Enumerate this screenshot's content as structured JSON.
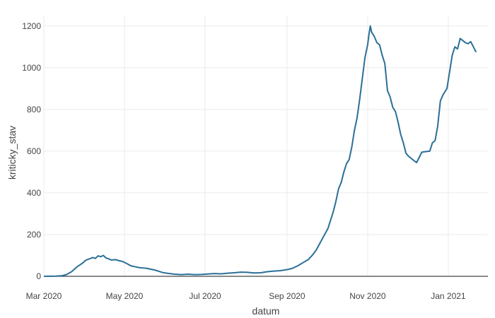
{
  "chart_data": {
    "type": "line",
    "title": "",
    "xlabel": "datum",
    "ylabel": "kriticky_stav",
    "grid": true,
    "legend": "none",
    "xlim": [
      "2020-03-01",
      "2021-01-31"
    ],
    "ylim": [
      0,
      1250
    ],
    "x_ticks": [
      {
        "date": "2020-03-01",
        "label": "Mar 2020"
      },
      {
        "date": "2020-05-01",
        "label": "May 2020"
      },
      {
        "date": "2020-07-01",
        "label": "Jul 2020"
      },
      {
        "date": "2020-09-01",
        "label": "Sep 2020"
      },
      {
        "date": "2020-11-01",
        "label": "Nov 2020"
      },
      {
        "date": "2021-01-01",
        "label": "Jan 2021"
      }
    ],
    "y_ticks": [
      {
        "value": 0,
        "label": "0"
      },
      {
        "value": 200,
        "label": "200"
      },
      {
        "value": 400,
        "label": "400"
      },
      {
        "value": 600,
        "label": "600"
      },
      {
        "value": 800,
        "label": "800"
      },
      {
        "value": 1000,
        "label": "1000"
      },
      {
        "value": 1200,
        "label": "1200"
      }
    ],
    "colors": {
      "line": "#2a6f97",
      "grid": "#ebebeb",
      "zeroline": "#444444",
      "text": "#444444"
    },
    "series": [
      {
        "points": [
          [
            "2020-03-01",
            0
          ],
          [
            "2020-03-10",
            1
          ],
          [
            "2020-03-15",
            3
          ],
          [
            "2020-03-18",
            8
          ],
          [
            "2020-03-22",
            22
          ],
          [
            "2020-03-26",
            45
          ],
          [
            "2020-03-30",
            62
          ],
          [
            "2020-04-02",
            78
          ],
          [
            "2020-04-05",
            85
          ],
          [
            "2020-04-07",
            90
          ],
          [
            "2020-04-09",
            86
          ],
          [
            "2020-04-11",
            98
          ],
          [
            "2020-04-13",
            94
          ],
          [
            "2020-04-15",
            100
          ],
          [
            "2020-04-17",
            88
          ],
          [
            "2020-04-19",
            84
          ],
          [
            "2020-04-21",
            78
          ],
          [
            "2020-04-24",
            80
          ],
          [
            "2020-04-27",
            75
          ],
          [
            "2020-04-30",
            70
          ],
          [
            "2020-05-03",
            60
          ],
          [
            "2020-05-06",
            50
          ],
          [
            "2020-05-09",
            46
          ],
          [
            "2020-05-12",
            42
          ],
          [
            "2020-05-15",
            40
          ],
          [
            "2020-05-18",
            38
          ],
          [
            "2020-05-21",
            34
          ],
          [
            "2020-05-24",
            30
          ],
          [
            "2020-05-27",
            24
          ],
          [
            "2020-05-30",
            18
          ],
          [
            "2020-06-03",
            14
          ],
          [
            "2020-06-08",
            10
          ],
          [
            "2020-06-13",
            8
          ],
          [
            "2020-06-18",
            10
          ],
          [
            "2020-06-23",
            8
          ],
          [
            "2020-06-28",
            9
          ],
          [
            "2020-07-03",
            11
          ],
          [
            "2020-07-08",
            13
          ],
          [
            "2020-07-13",
            12
          ],
          [
            "2020-07-18",
            15
          ],
          [
            "2020-07-23",
            17
          ],
          [
            "2020-07-28",
            20
          ],
          [
            "2020-08-02",
            19
          ],
          [
            "2020-08-07",
            16
          ],
          [
            "2020-08-12",
            17
          ],
          [
            "2020-08-17",
            22
          ],
          [
            "2020-08-22",
            25
          ],
          [
            "2020-08-27",
            27
          ],
          [
            "2020-09-01",
            32
          ],
          [
            "2020-09-05",
            38
          ],
          [
            "2020-09-09",
            50
          ],
          [
            "2020-09-13",
            65
          ],
          [
            "2020-09-17",
            80
          ],
          [
            "2020-09-20",
            100
          ],
          [
            "2020-09-23",
            125
          ],
          [
            "2020-09-26",
            160
          ],
          [
            "2020-09-29",
            195
          ],
          [
            "2020-10-02",
            230
          ],
          [
            "2020-10-04",
            270
          ],
          [
            "2020-10-06",
            310
          ],
          [
            "2020-10-08",
            360
          ],
          [
            "2020-10-10",
            420
          ],
          [
            "2020-10-12",
            450
          ],
          [
            "2020-10-14",
            500
          ],
          [
            "2020-10-16",
            540
          ],
          [
            "2020-10-18",
            560
          ],
          [
            "2020-10-20",
            620
          ],
          [
            "2020-10-22",
            700
          ],
          [
            "2020-10-24",
            760
          ],
          [
            "2020-10-26",
            850
          ],
          [
            "2020-10-28",
            950
          ],
          [
            "2020-10-30",
            1050
          ],
          [
            "2020-11-01",
            1110
          ],
          [
            "2020-11-02",
            1160
          ],
          [
            "2020-11-03",
            1200
          ],
          [
            "2020-11-04",
            1170
          ],
          [
            "2020-11-06",
            1150
          ],
          [
            "2020-11-08",
            1120
          ],
          [
            "2020-11-10",
            1110
          ],
          [
            "2020-11-12",
            1060
          ],
          [
            "2020-11-14",
            1020
          ],
          [
            "2020-11-16",
            890
          ],
          [
            "2020-11-18",
            860
          ],
          [
            "2020-11-20",
            810
          ],
          [
            "2020-11-22",
            790
          ],
          [
            "2020-11-24",
            740
          ],
          [
            "2020-11-26",
            680
          ],
          [
            "2020-11-28",
            640
          ],
          [
            "2020-11-30",
            590
          ],
          [
            "2020-12-02",
            575
          ],
          [
            "2020-12-05",
            560
          ],
          [
            "2020-12-08",
            545
          ],
          [
            "2020-12-10",
            570
          ],
          [
            "2020-12-12",
            595
          ],
          [
            "2020-12-15",
            598
          ],
          [
            "2020-12-18",
            600
          ],
          [
            "2020-12-20",
            640
          ],
          [
            "2020-12-22",
            650
          ],
          [
            "2020-12-24",
            720
          ],
          [
            "2020-12-26",
            840
          ],
          [
            "2020-12-28",
            870
          ],
          [
            "2020-12-31",
            900
          ],
          [
            "2021-01-02",
            980
          ],
          [
            "2021-01-04",
            1060
          ],
          [
            "2021-01-06",
            1100
          ],
          [
            "2021-01-08",
            1090
          ],
          [
            "2021-01-10",
            1140
          ],
          [
            "2021-01-12",
            1130
          ],
          [
            "2021-01-14",
            1120
          ],
          [
            "2021-01-16",
            1115
          ],
          [
            "2021-01-18",
            1125
          ],
          [
            "2021-01-20",
            1100
          ],
          [
            "2021-01-22",
            1075
          ]
        ]
      }
    ]
  }
}
